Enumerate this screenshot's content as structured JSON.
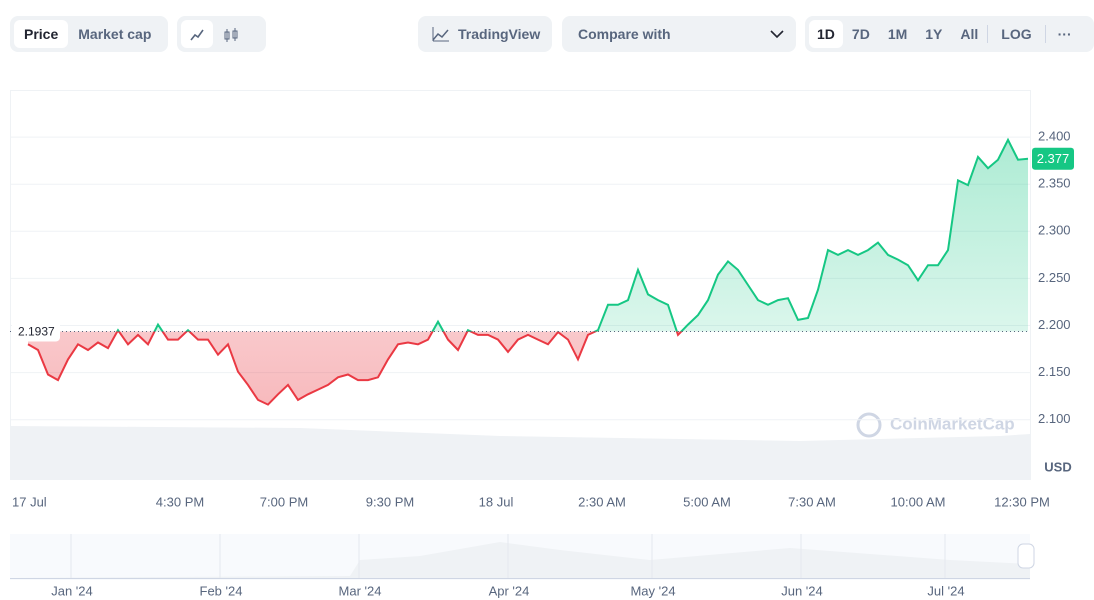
{
  "toolbar": {
    "tabs": [
      "Price",
      "Market cap"
    ],
    "trading_view": "TradingView",
    "compare": "Compare with",
    "ranges": [
      "1D",
      "7D",
      "1M",
      "1Y",
      "All"
    ],
    "log": "LOG"
  },
  "chart_data": {
    "type": "area",
    "up_color": "#16c784",
    "down_color": "#ea3943",
    "baseline": 2.1937,
    "current_price": 2.377,
    "values": [
      2.18,
      2.174,
      2.148,
      2.142,
      2.164,
      2.18,
      2.174,
      2.182,
      2.176,
      2.195,
      2.18,
      2.19,
      2.18,
      2.201,
      2.185,
      2.185,
      2.195,
      2.185,
      2.185,
      2.169,
      2.18,
      2.151,
      2.137,
      2.121,
      2.116,
      2.127,
      2.137,
      2.121,
      2.127,
      2.132,
      2.137,
      2.145,
      2.148,
      2.142,
      2.142,
      2.145,
      2.164,
      2.18,
      2.182,
      2.18,
      2.185,
      2.204,
      2.185,
      2.174,
      2.195,
      2.19,
      2.19,
      2.185,
      2.172,
      2.185,
      2.19,
      2.185,
      2.18,
      2.193,
      2.185,
      2.164,
      2.19,
      2.195,
      2.222,
      2.222,
      2.227,
      2.259,
      2.233,
      2.227,
      2.222,
      2.19,
      2.201,
      2.211,
      2.227,
      2.254,
      2.268,
      2.259,
      2.243,
      2.227,
      2.222,
      2.227,
      2.229,
      2.206,
      2.208,
      2.238,
      2.28,
      2.275,
      2.28,
      2.275,
      2.28,
      2.288,
      2.275,
      2.27,
      2.264,
      2.248,
      2.264,
      2.264,
      2.28,
      2.354,
      2.349,
      2.379,
      2.367,
      2.376,
      2.397,
      2.376,
      2.377
    ],
    "ylim": [
      2.036,
      2.45
    ],
    "yticks": [
      {
        "value": 2.4,
        "label": "2.400"
      },
      {
        "value": 2.35,
        "label": "2.350"
      },
      {
        "value": 2.3,
        "label": "2.300"
      },
      {
        "value": 2.25,
        "label": "2.250"
      },
      {
        "value": 2.2,
        "label": "2.200"
      },
      {
        "value": 2.15,
        "label": "2.150"
      },
      {
        "value": 2.1,
        "label": "2.100"
      }
    ],
    "y_unit": "USD",
    "xticks": [
      "17 Jul",
      "4:30 PM",
      "7:00 PM",
      "9:30 PM",
      "18 Jul",
      "2:30 AM",
      "5:00 AM",
      "7:30 AM",
      "10:00 AM",
      "12:30 PM"
    ],
    "watermark": "CoinMarketCap",
    "navigator_labels": [
      "Jan '24",
      "Feb '24",
      "Mar '24",
      "Apr '24",
      "May '24",
      "Jun '24",
      "Jul '24"
    ]
  }
}
